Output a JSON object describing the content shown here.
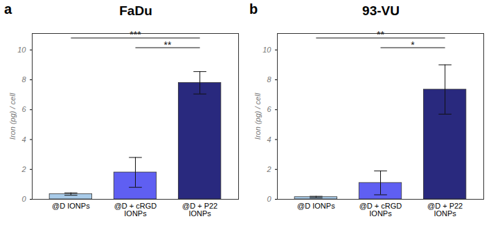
{
  "chart_data": [
    {
      "type": "bar",
      "panel_label": "a",
      "title": "FaDu",
      "y_label": "Iron (pg) / cell",
      "categories": [
        "@D IONPs",
        "@D + cRGD IONPs",
        "@D + P22 IONPs"
      ],
      "values": [
        0.35,
        1.8,
        7.8
      ],
      "errors": [
        0.08,
        1.0,
        0.75
      ],
      "colors": [
        "#a9cbe9",
        "#5f5ff2",
        "#29297e"
      ],
      "ylim": [
        0,
        11.1
      ],
      "yticks": [
        0,
        2,
        4,
        6,
        8,
        10
      ],
      "grid": false,
      "annotations": [
        {
          "from": 0,
          "to": 2,
          "y": 10.8,
          "text": "***"
        },
        {
          "from": 1,
          "to": 2,
          "y": 10.15,
          "text": "**"
        }
      ]
    },
    {
      "type": "bar",
      "panel_label": "b",
      "title": "93-VU",
      "y_label": "Iron (pg) / cell",
      "categories": [
        "@D IONPs",
        "@D + cRGD IONPs",
        "@D + P22 IONPs"
      ],
      "values": [
        0.15,
        1.1,
        7.35
      ],
      "errors": [
        0.05,
        0.8,
        1.65
      ],
      "colors": [
        "#a9cbe9",
        "#5f5ff2",
        "#29297e"
      ],
      "ylim": [
        0,
        11.1
      ],
      "yticks": [
        0,
        2,
        4,
        6,
        8,
        10
      ],
      "grid": false,
      "annotations": [
        {
          "from": 0,
          "to": 2,
          "y": 10.8,
          "text": "**"
        },
        {
          "from": 1,
          "to": 2,
          "y": 10.15,
          "text": "*"
        }
      ]
    }
  ]
}
